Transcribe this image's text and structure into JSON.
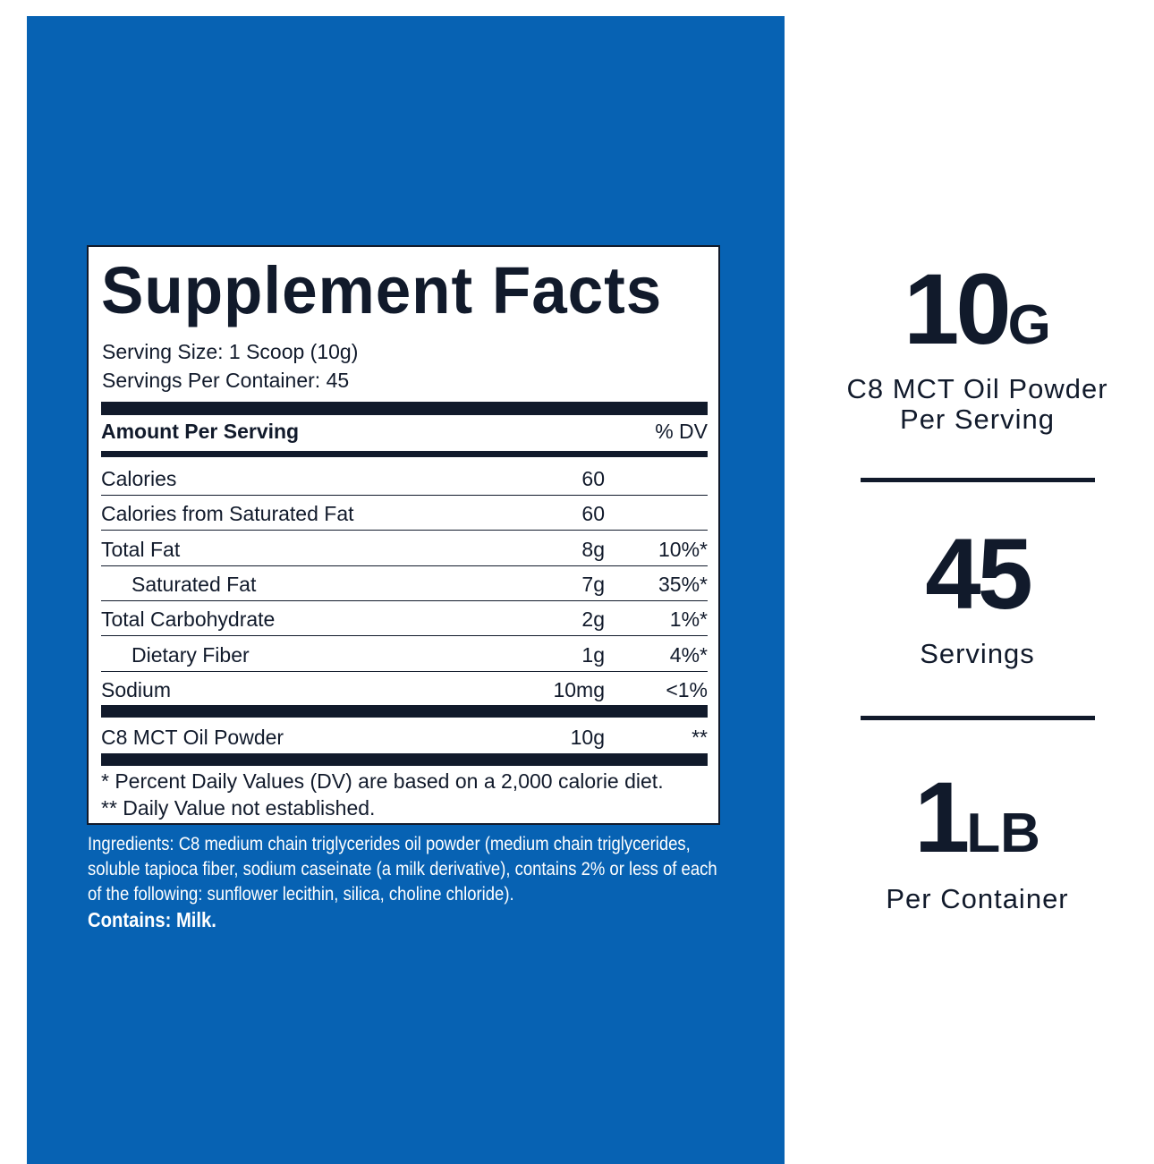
{
  "label": {
    "title": "Supplement Facts",
    "serving_size": "Serving Size: 1 Scoop (10g)",
    "servings_per_container": "Servings Per Container: 45",
    "amount_header": "Amount Per Serving",
    "dv_header": "% DV",
    "rows": [
      {
        "name": "Calories",
        "amount": "60",
        "dv": ""
      },
      {
        "name": "Calories from Saturated Fat",
        "amount": "60",
        "dv": ""
      },
      {
        "name": "Total Fat",
        "amount": "8g",
        "dv": "10%*"
      },
      {
        "name": "Saturated Fat",
        "amount": "7g",
        "dv": "35%*"
      },
      {
        "name": "Total Carbohydrate",
        "amount": "2g",
        "dv": "1%*"
      },
      {
        "name": "Dietary Fiber",
        "amount": "1g",
        "dv": "4%*"
      },
      {
        "name": "Sodium",
        "amount": "10mg",
        "dv": "<1%"
      }
    ],
    "ingredient_row": {
      "name": "C8 MCT Oil Powder",
      "amount": "10g",
      "dv": "**"
    },
    "footnote1": "* Percent Daily Values (DV) are based on a 2,000 calorie diet.",
    "footnote2": "** Daily Value not established."
  },
  "ingredients": "Ingredients: C8 medium chain triglycerides oil powder (medium chain triglycerides, soluble tapioca fiber, sodium caseinate (a milk derivative), contains 2% or less of each of the following: sunflower lecithin, silica, choline chloride).",
  "contains": "Contains: Milk.",
  "stats": [
    {
      "value": "10",
      "unit": "G",
      "line1": "C8 MCT Oil Powder",
      "line2": "Per Serving"
    },
    {
      "value": "45",
      "unit": "",
      "line1": "Servings",
      "line2": ""
    },
    {
      "value": "1",
      "unit": "LB",
      "line1": "Per Container",
      "line2": ""
    }
  ],
  "colors": {
    "panel": "#0762b3",
    "ink": "#111a2b"
  }
}
